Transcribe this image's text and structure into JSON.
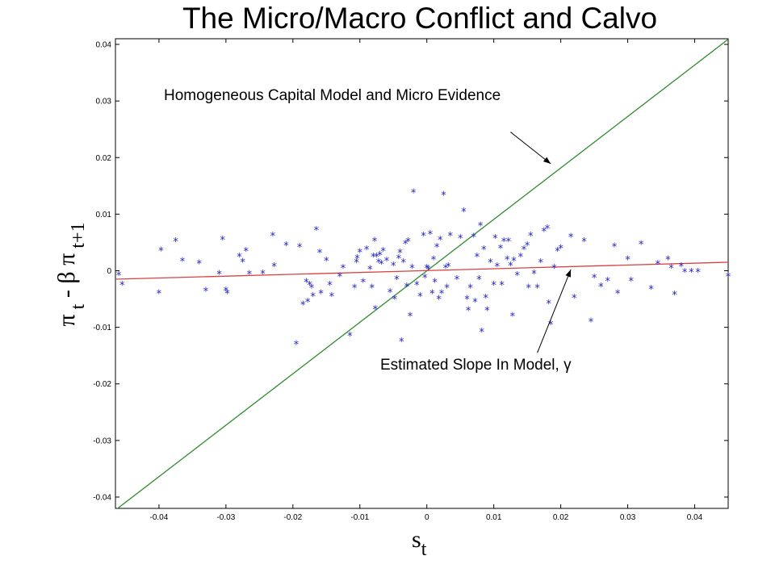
{
  "title": "The Micro/Macro Conflict and Calvo",
  "colors": {
    "scatter": "#1f1fc8",
    "steep_line": "#2e8b2e",
    "slope_line": "#d94040",
    "axes": "#000000"
  },
  "chart_data": {
    "type": "scatter",
    "title": "The Micro/Macro Conflict and Calvo",
    "xlabel": {
      "symbol": "s",
      "subscript": "t"
    },
    "ylabel": {
      "parts": [
        "π",
        "t",
        "-",
        "β",
        "π",
        "t+1"
      ]
    },
    "xlim": [
      -0.0465,
      0.045
    ],
    "ylim": [
      -0.042,
      0.041
    ],
    "xticks": [
      -0.04,
      -0.03,
      -0.02,
      -0.01,
      0,
      0.01,
      0.02,
      0.03,
      0.04
    ],
    "xtick_labels": [
      "-0.04",
      "-0.03",
      "-0.02",
      "-0.01",
      "0",
      "0.01",
      "0.02",
      "0.03",
      "0.04"
    ],
    "yticks": [
      -0.04,
      -0.03,
      -0.02,
      -0.01,
      0,
      0.01,
      0.02,
      0.03,
      0.04
    ],
    "ytick_labels": [
      "-0.04",
      "-0.03",
      "-0.02",
      "-0.01",
      "0",
      "0.01",
      "0.02",
      "0.03",
      "0.04"
    ],
    "grid": false,
    "series": [
      {
        "type": "line",
        "x": [
          -0.0465,
          0.045
        ],
        "y": [
          -0.0423,
          0.0409
        ]
      },
      {
        "type": "line",
        "x": [
          -0.0465,
          0.045
        ],
        "y": [
          -0.0015,
          0.0015
        ]
      },
      {
        "type": "scatter",
        "marker": "*",
        "points": [
          [
            -0.046,
            -0.0008
          ],
          [
            -0.0455,
            -0.0025
          ],
          [
            -0.04,
            -0.004
          ],
          [
            -0.0397,
            0.0036
          ],
          [
            -0.0375,
            0.0052
          ],
          [
            -0.0365,
            0.0017
          ],
          [
            -0.034,
            0.0013
          ],
          [
            -0.033,
            -0.0036
          ],
          [
            -0.031,
            -0.0006
          ],
          [
            -0.0305,
            0.0055
          ],
          [
            -0.03,
            -0.0035
          ],
          [
            -0.0298,
            -0.004
          ],
          [
            -0.028,
            0.0025
          ],
          [
            -0.0275,
            0.0016
          ],
          [
            -0.027,
            0.0035
          ],
          [
            -0.0265,
            -0.0006
          ],
          [
            -0.0245,
            -0.0005
          ],
          [
            -0.023,
            0.0062
          ],
          [
            -0.0228,
            0.0008
          ],
          [
            -0.021,
            0.0045
          ],
          [
            -0.0195,
            -0.013
          ],
          [
            -0.019,
            0.0042
          ],
          [
            -0.0185,
            -0.006
          ],
          [
            -0.018,
            -0.002
          ],
          [
            -0.0178,
            -0.0055
          ],
          [
            -0.0175,
            -0.0025
          ],
          [
            -0.0172,
            -0.003
          ],
          [
            -0.017,
            -0.0045
          ],
          [
            -0.0165,
            0.0072
          ],
          [
            -0.016,
            0.0032
          ],
          [
            -0.0158,
            -0.004
          ],
          [
            -0.015,
            0.0018
          ],
          [
            -0.0145,
            -0.0025
          ],
          [
            -0.0142,
            -0.0045
          ],
          [
            -0.013,
            -0.001
          ],
          [
            -0.0125,
            0.0005
          ],
          [
            -0.0115,
            -0.0115
          ],
          [
            -0.0108,
            -0.003
          ],
          [
            -0.0105,
            0.0015
          ],
          [
            -0.0104,
            0.0022
          ],
          [
            -0.01,
            0.0033
          ],
          [
            -0.0095,
            -0.002
          ],
          [
            -0.009,
            0.0038
          ],
          [
            -0.0085,
            0.0003
          ],
          [
            -0.0082,
            -0.003
          ],
          [
            -0.008,
            0.0025
          ],
          [
            -0.0078,
            0.0053
          ],
          [
            -0.0077,
            -0.0068
          ],
          [
            -0.0075,
            0.0025
          ],
          [
            -0.0072,
            0.0015
          ],
          [
            -0.007,
            0.0028
          ],
          [
            -0.0068,
            0.0012
          ],
          [
            -0.0065,
            0.0035
          ],
          [
            -0.006,
            0.0018
          ],
          [
            -0.0055,
            -0.0038
          ],
          [
            -0.005,
            0.0009
          ],
          [
            -0.0048,
            -0.005
          ],
          [
            -0.0045,
            -0.0015
          ],
          [
            -0.0042,
            0.0022
          ],
          [
            -0.004,
            0.0032
          ],
          [
            -0.0038,
            -0.0125
          ],
          [
            -0.0035,
            0.0015
          ],
          [
            -0.0032,
            0.0048
          ],
          [
            -0.003,
            -0.0028
          ],
          [
            -0.0028,
            0.0052
          ],
          [
            -0.0025,
            -0.008
          ],
          [
            -0.0022,
            0.0005
          ],
          [
            -0.002,
            0.0138
          ],
          [
            -0.0015,
            -0.0025
          ],
          [
            -0.001,
            -0.0045
          ],
          [
            -0.0005,
            0.0062
          ],
          [
            -0.0003,
            -0.0012
          ],
          [
            0.0,
            0.0005
          ],
          [
            0.0002,
            0.0003
          ],
          [
            0.0005,
            0.0065
          ],
          [
            0.0008,
            -0.004
          ],
          [
            0.001,
            0.002
          ],
          [
            0.0012,
            -0.002
          ],
          [
            0.0015,
            0.0042
          ],
          [
            0.0018,
            -0.005
          ],
          [
            0.002,
            0.0055
          ],
          [
            0.0022,
            -0.004
          ],
          [
            0.0025,
            0.0134
          ],
          [
            0.0028,
            0.0005
          ],
          [
            0.003,
            -0.003
          ],
          [
            0.0032,
            0.0008
          ],
          [
            0.0035,
            0.0062
          ],
          [
            0.0045,
            -0.0015
          ],
          [
            0.005,
            0.0058
          ],
          [
            0.0055,
            0.0105
          ],
          [
            0.006,
            -0.005
          ],
          [
            0.0062,
            -0.007
          ],
          [
            0.0065,
            -0.003
          ],
          [
            0.007,
            0.006
          ],
          [
            0.0072,
            -0.0055
          ],
          [
            0.0075,
            0.0025
          ],
          [
            0.0078,
            -0.0015
          ],
          [
            0.008,
            0.008
          ],
          [
            0.0082,
            -0.0108
          ],
          [
            0.0085,
            0.0038
          ],
          [
            0.0088,
            -0.0048
          ],
          [
            0.009,
            -0.007
          ],
          [
            0.0095,
            0.0015
          ],
          [
            0.01,
            -0.0025
          ],
          [
            0.0102,
            0.0058
          ],
          [
            0.0105,
            0.0008
          ],
          [
            0.011,
            0.004
          ],
          [
            0.0112,
            -0.0025
          ],
          [
            0.0115,
            0.0052
          ],
          [
            0.012,
            0.002
          ],
          [
            0.0122,
            0.0052
          ],
          [
            0.0125,
            0.0009
          ],
          [
            0.0128,
            -0.008
          ],
          [
            0.013,
            0.0018
          ],
          [
            0.0135,
            -0.0008
          ],
          [
            0.014,
            0.0025
          ],
          [
            0.0145,
            0.0038
          ],
          [
            0.015,
            0.0045
          ],
          [
            0.0152,
            -0.003
          ],
          [
            0.0155,
            0.0062
          ],
          [
            0.016,
            -0.0005
          ],
          [
            0.0165,
            -0.003
          ],
          [
            0.017,
            0.0015
          ],
          [
            0.0175,
            0.007
          ],
          [
            0.018,
            0.0075
          ],
          [
            0.0182,
            -0.0058
          ],
          [
            0.0185,
            -0.0095
          ],
          [
            0.019,
            0.0005
          ],
          [
            0.0195,
            0.0035
          ],
          [
            0.02,
            0.004
          ],
          [
            0.0215,
            0.006
          ],
          [
            0.022,
            -0.0048
          ],
          [
            0.0235,
            0.0052
          ],
          [
            0.0245,
            -0.009
          ],
          [
            0.025,
            -0.0012
          ],
          [
            0.026,
            -0.0028
          ],
          [
            0.027,
            -0.0018
          ],
          [
            0.028,
            0.0043
          ],
          [
            0.0285,
            -0.004
          ],
          [
            0.03,
            0.002
          ],
          [
            0.0305,
            -0.0018
          ],
          [
            0.032,
            0.0047
          ],
          [
            0.0335,
            -0.0032
          ],
          [
            0.0345,
            0.0012
          ],
          [
            0.036,
            0.002
          ],
          [
            0.0365,
            0.0005
          ],
          [
            0.037,
            -0.0042
          ],
          [
            0.038,
            0.0008
          ],
          [
            0.0385,
            -0.0002
          ],
          [
            0.0395,
            -0.0002
          ],
          [
            0.0405,
            -0.0002
          ],
          [
            0.045,
            -0.001
          ]
        ]
      }
    ],
    "annotations": [
      {
        "text": "Homogeneous Capital Model and Micro Evidence",
        "arrow_from": [
          0.0125,
          0.0245
        ],
        "arrow_to": [
          0.0185,
          0.0189
        ]
      },
      {
        "text": "Estimated Slope In Model, γ",
        "arrow_from": [
          0.0165,
          -0.0145
        ],
        "arrow_to": [
          0.0215,
          0.0002
        ]
      }
    ]
  }
}
